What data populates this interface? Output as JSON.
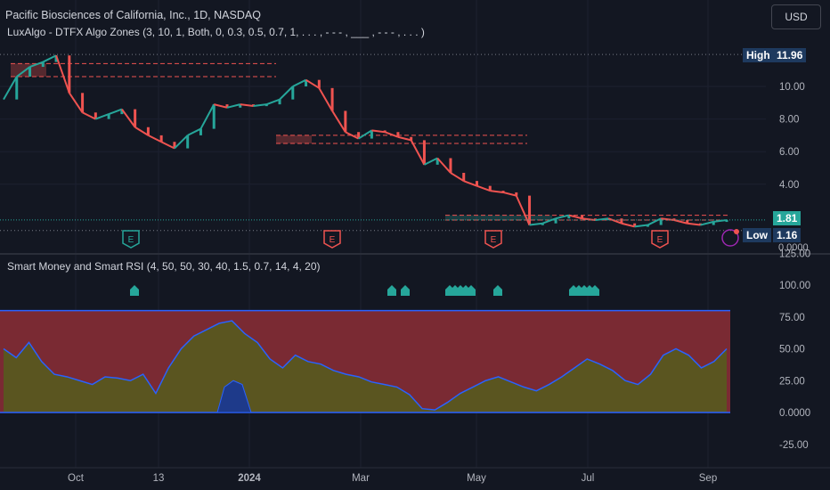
{
  "header": {
    "title": "Pacific Biosciences of California, Inc., 1D, NASDAQ",
    "indicator1": "LuxAlgo - DTFX Algo Zones (3, 10, 1, Both, 0, 0.3, 0.5, 0.7, 1, . . . , - - - , ___ , - - - , . . . )",
    "indicator2": "Smart Money and Smart RSI (4, 50, 50, 30, 40, 1.5, 0.7, 14, 4, 20)",
    "currency_button": "USD"
  },
  "price_badges": {
    "high_label": "High",
    "high_value": "11.96",
    "last_value": "1.81",
    "low_label": "Low",
    "low_value": "1.16",
    "zero_value": "0.0000"
  },
  "colors": {
    "background": "#131722",
    "up": "#26a69a",
    "down": "#ef5350",
    "rsi_line": "#2962ff",
    "overbought_fill": "#7a2a33",
    "oversold_fill": "#5a5520",
    "axis_text": "#b2b5be"
  },
  "chart_data": [
    {
      "type": "line",
      "title": "Pacific Biosciences of California, Inc., 1D, NASDAQ",
      "x_labels": [
        "Oct",
        "13",
        "2024",
        "Mar",
        "May",
        "Jul",
        "Sep"
      ],
      "y_ticks": [
        "10.00",
        "8.00",
        "6.00",
        "4.00"
      ],
      "ylim": [
        0,
        12.5
      ],
      "series": [
        {
          "values": [
            9.2,
            10.6,
            11.2,
            11.5,
            11.9,
            9.6,
            8.4,
            8.0,
            8.3,
            8.6,
            7.5,
            7.0,
            6.6,
            6.2,
            7.0,
            7.4,
            8.9,
            8.7,
            8.9,
            8.8,
            8.9,
            9.2,
            10.0,
            10.4,
            9.9,
            8.5,
            7.2,
            6.8,
            7.3,
            7.2,
            6.9,
            6.7,
            5.2,
            5.6,
            4.7,
            4.2,
            3.9,
            3.6,
            3.5,
            3.3,
            1.5,
            1.6,
            1.9,
            2.1,
            1.9,
            1.8,
            1.9,
            1.6,
            1.4,
            1.5,
            1.9,
            1.8,
            1.6,
            1.5,
            1.7,
            1.8
          ]
        }
      ],
      "zones": [
        {
          "from": 11.4,
          "to": 10.6
        },
        {
          "from": 7.0,
          "to": 6.5
        },
        {
          "from": 2.1,
          "to": 1.8
        }
      ],
      "high": 11.96,
      "low": 1.16,
      "last": 1.81,
      "earnings_markers": 4
    },
    {
      "type": "area",
      "title": "Smart Money and Smart RSI (4, 50, 50, 30, 40, 1.5, 0.7, 14, 4, 20)",
      "y_ticks": [
        "125.00",
        "100.00",
        "75.00",
        "50.00",
        "25.00",
        "0.0000",
        "-25.00"
      ],
      "ylim": [
        -30,
        125
      ],
      "band": [
        0,
        80
      ],
      "series": [
        {
          "values": [
            50,
            43,
            55,
            40,
            30,
            28,
            25,
            22,
            28,
            27,
            25,
            30,
            15,
            35,
            50,
            60,
            65,
            70,
            72,
            62,
            55,
            42,
            35,
            45,
            40,
            38,
            33,
            30,
            28,
            24,
            22,
            20,
            14,
            3,
            2,
            8,
            15,
            20,
            25,
            28,
            24,
            20,
            17,
            22,
            28,
            35,
            42,
            38,
            33,
            25,
            22,
            30,
            45,
            50,
            45,
            35,
            40,
            50
          ]
        }
      ],
      "smart_money_markers": 6
    }
  ]
}
